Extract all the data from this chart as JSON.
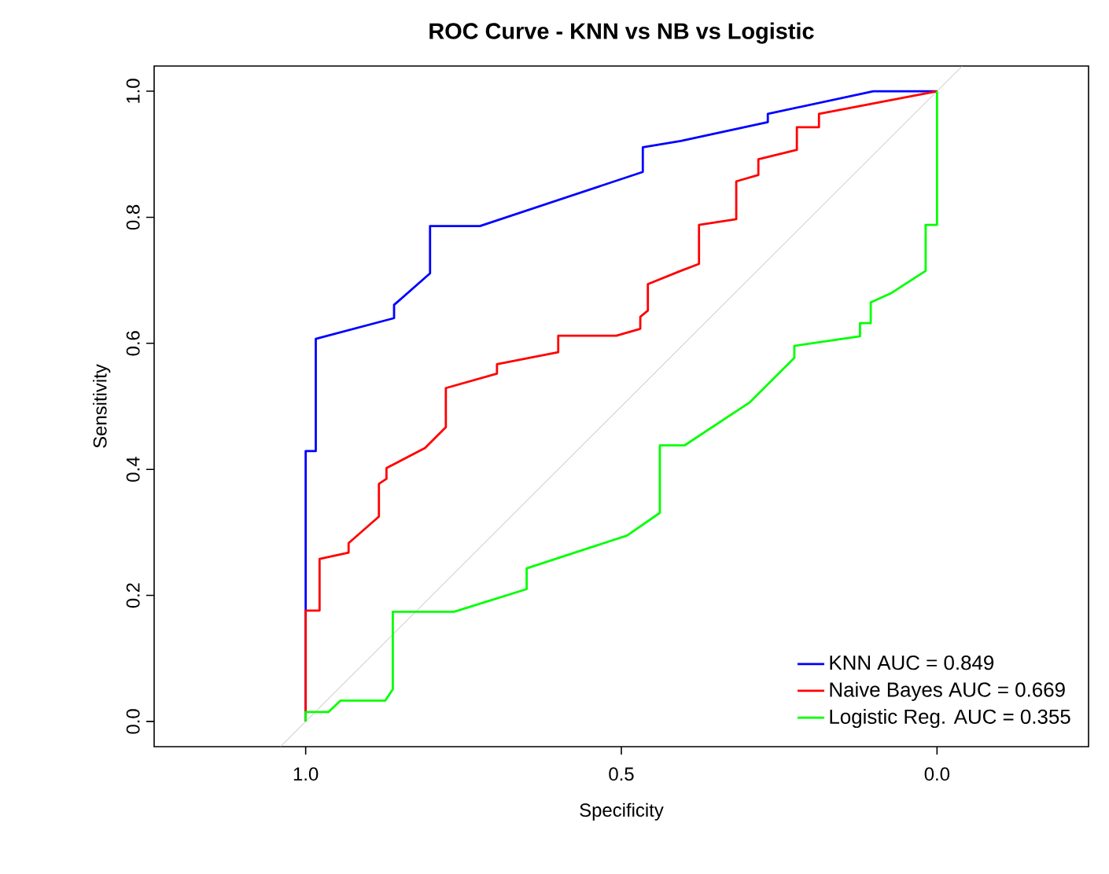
{
  "chart_data": {
    "type": "line",
    "title": "ROC Curve - KNN vs NB vs Logistic",
    "xlabel": "Specificity",
    "ylabel": "Sensitivity",
    "xlim": [
      1.24,
      -0.24
    ],
    "ylim": [
      -0.04,
      1.04
    ],
    "xticks": [
      {
        "value": 1.0,
        "label": "1.0"
      },
      {
        "value": 0.5,
        "label": "0.5"
      },
      {
        "value": 0.0,
        "label": "0.0"
      }
    ],
    "yticks": [
      {
        "value": 0.0,
        "label": "0.0"
      },
      {
        "value": 0.2,
        "label": "0.2"
      },
      {
        "value": 0.4,
        "label": "0.4"
      },
      {
        "value": 0.6,
        "label": "0.6"
      },
      {
        "value": 0.8,
        "label": "0.8"
      },
      {
        "value": 1.0,
        "label": "1.0"
      }
    ],
    "grid": false,
    "legend": "bottom right",
    "marker": "none",
    "line_style": "solid",
    "series": [
      {
        "color": "#bebebe",
        "x": [
          1.04,
          -0.04
        ],
        "values": [
          -0.04,
          1.04
        ]
      },
      {
        "name": "KNN AUC = 0.849",
        "color": "#0000ff",
        "x": [
          1.0,
          1.0,
          0.984,
          0.984,
          0.86,
          0.86,
          0.803,
          0.803,
          0.724,
          0.466,
          0.466,
          0.406,
          0.268,
          0.268,
          0.101,
          0.0
        ],
        "values": [
          0.0,
          0.429,
          0.429,
          0.607,
          0.64,
          0.661,
          0.711,
          0.786,
          0.786,
          0.872,
          0.911,
          0.921,
          0.951,
          0.964,
          1.0,
          1.0
        ]
      },
      {
        "name": "Naive Bayes AUC = 0.669",
        "color": "#ff0000",
        "x": [
          1.0,
          1.0,
          0.978,
          0.978,
          0.932,
          0.932,
          0.884,
          0.884,
          0.872,
          0.872,
          0.811,
          0.778,
          0.778,
          0.697,
          0.697,
          0.6,
          0.6,
          0.508,
          0.47,
          0.47,
          0.458,
          0.458,
          0.406,
          0.377,
          0.377,
          0.318,
          0.318,
          0.283,
          0.283,
          0.222,
          0.222,
          0.187,
          0.187,
          0.0
        ],
        "values": [
          0.0,
          0.176,
          0.176,
          0.258,
          0.268,
          0.283,
          0.325,
          0.377,
          0.385,
          0.402,
          0.434,
          0.467,
          0.529,
          0.552,
          0.567,
          0.586,
          0.612,
          0.612,
          0.623,
          0.642,
          0.652,
          0.694,
          0.715,
          0.726,
          0.788,
          0.797,
          0.857,
          0.867,
          0.892,
          0.907,
          0.943,
          0.943,
          0.964,
          1.0
        ]
      },
      {
        "name": "Logistic Reg. AUC = 0.355",
        "color": "#00ff00",
        "x": [
          1.0,
          1.0,
          0.964,
          0.945,
          0.874,
          0.862,
          0.862,
          0.765,
          0.65,
          0.65,
          0.491,
          0.439,
          0.439,
          0.4,
          0.297,
          0.226,
          0.226,
          0.122,
          0.122,
          0.105,
          0.105,
          0.072,
          0.018,
          0.018,
          0.0,
          0.0,
          0.0
        ],
        "values": [
          0.0,
          0.015,
          0.015,
          0.033,
          0.033,
          0.051,
          0.174,
          0.174,
          0.21,
          0.243,
          0.295,
          0.331,
          0.438,
          0.438,
          0.506,
          0.577,
          0.596,
          0.611,
          0.632,
          0.632,
          0.665,
          0.68,
          0.715,
          0.788,
          0.788,
          1.0,
          1.0
        ]
      }
    ]
  }
}
